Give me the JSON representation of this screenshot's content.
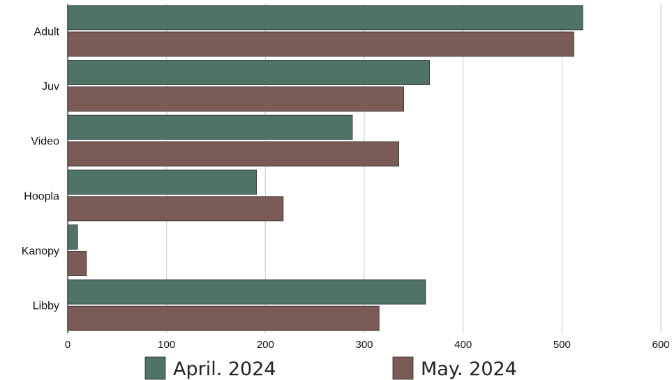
{
  "chart_data": {
    "type": "bar",
    "orientation": "horizontal",
    "categories": [
      "Adult",
      "Juv",
      "Video",
      "Hoopla",
      "Kanopy",
      "Libby"
    ],
    "series": [
      {
        "name": "April. 2024",
        "color": "#4f7467",
        "values": [
          521,
          366,
          288,
          191,
          10,
          362
        ]
      },
      {
        "name": "May. 2024",
        "color": "#7a5b56",
        "values": [
          512,
          340,
          335,
          218,
          19,
          315
        ]
      }
    ],
    "xticks": [
      0,
      100,
      200,
      300,
      400,
      500,
      600
    ],
    "xlim": [
      0,
      600
    ],
    "grid": true,
    "legend_position": "bottom"
  }
}
